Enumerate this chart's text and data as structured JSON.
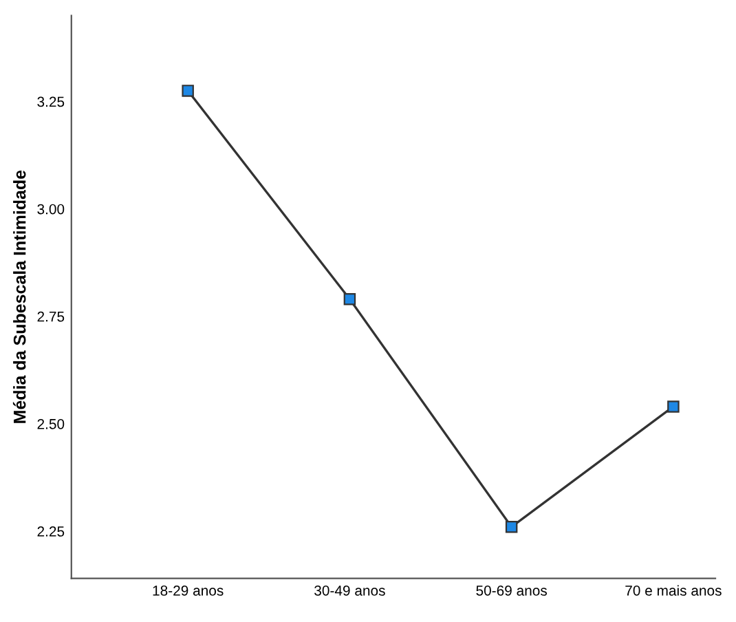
{
  "chart_data": {
    "type": "line",
    "ylabel": "Média da Subescala Intimidade",
    "categories": [
      "18-29 anos",
      "30-49 anos",
      "50-69 anos",
      "70 e mais anos"
    ],
    "series": [
      {
        "color": "#1e88e5",
        "values": [
          3.275,
          2.79,
          2.26,
          2.54
        ]
      }
    ],
    "ylim": [
      2.14,
      3.45
    ],
    "yticks": [
      {
        "value": 2.25,
        "label": "2.25"
      },
      {
        "value": 2.5,
        "label": "2.50"
      },
      {
        "value": 2.75,
        "label": "2.75"
      },
      {
        "value": 3.0,
        "label": "3.00"
      },
      {
        "value": 3.25,
        "label": "3.25"
      }
    ],
    "marker": "square",
    "line_style": "solid",
    "grid": false,
    "legend": false
  }
}
